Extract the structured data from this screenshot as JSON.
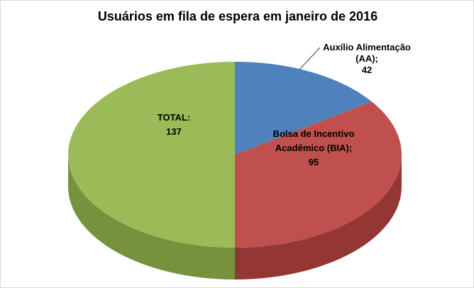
{
  "chart_data": {
    "type": "pie",
    "is_3d": true,
    "title": "Usuários em fila de espera em janeiro de 2016",
    "start_angle_deg": -90,
    "direction": "clockwise",
    "legend": "none",
    "categories": [
      "Auxílio Alimentação (AA)",
      "Bolsa de Incentivo Acadêmico (BIA)",
      "TOTAL"
    ],
    "values": [
      42,
      95,
      137
    ],
    "slice_colors": [
      "#4F81BD",
      "#C0504D",
      "#9BBB59"
    ],
    "slice_side_colors": [
      "#36618E",
      "#943634",
      "#76923C"
    ],
    "labels": [
      {
        "lines": [
          "Auxílio Alimentação",
          "(AA);",
          "42"
        ],
        "placement": "outside-with-leader-line"
      },
      {
        "lines": [
          "Bolsa de Incentivo",
          "Acadêmico (BIA);",
          "95"
        ],
        "placement": "inside"
      },
      {
        "lines": [
          "TOTAL:",
          "137"
        ],
        "placement": "inside"
      }
    ]
  }
}
